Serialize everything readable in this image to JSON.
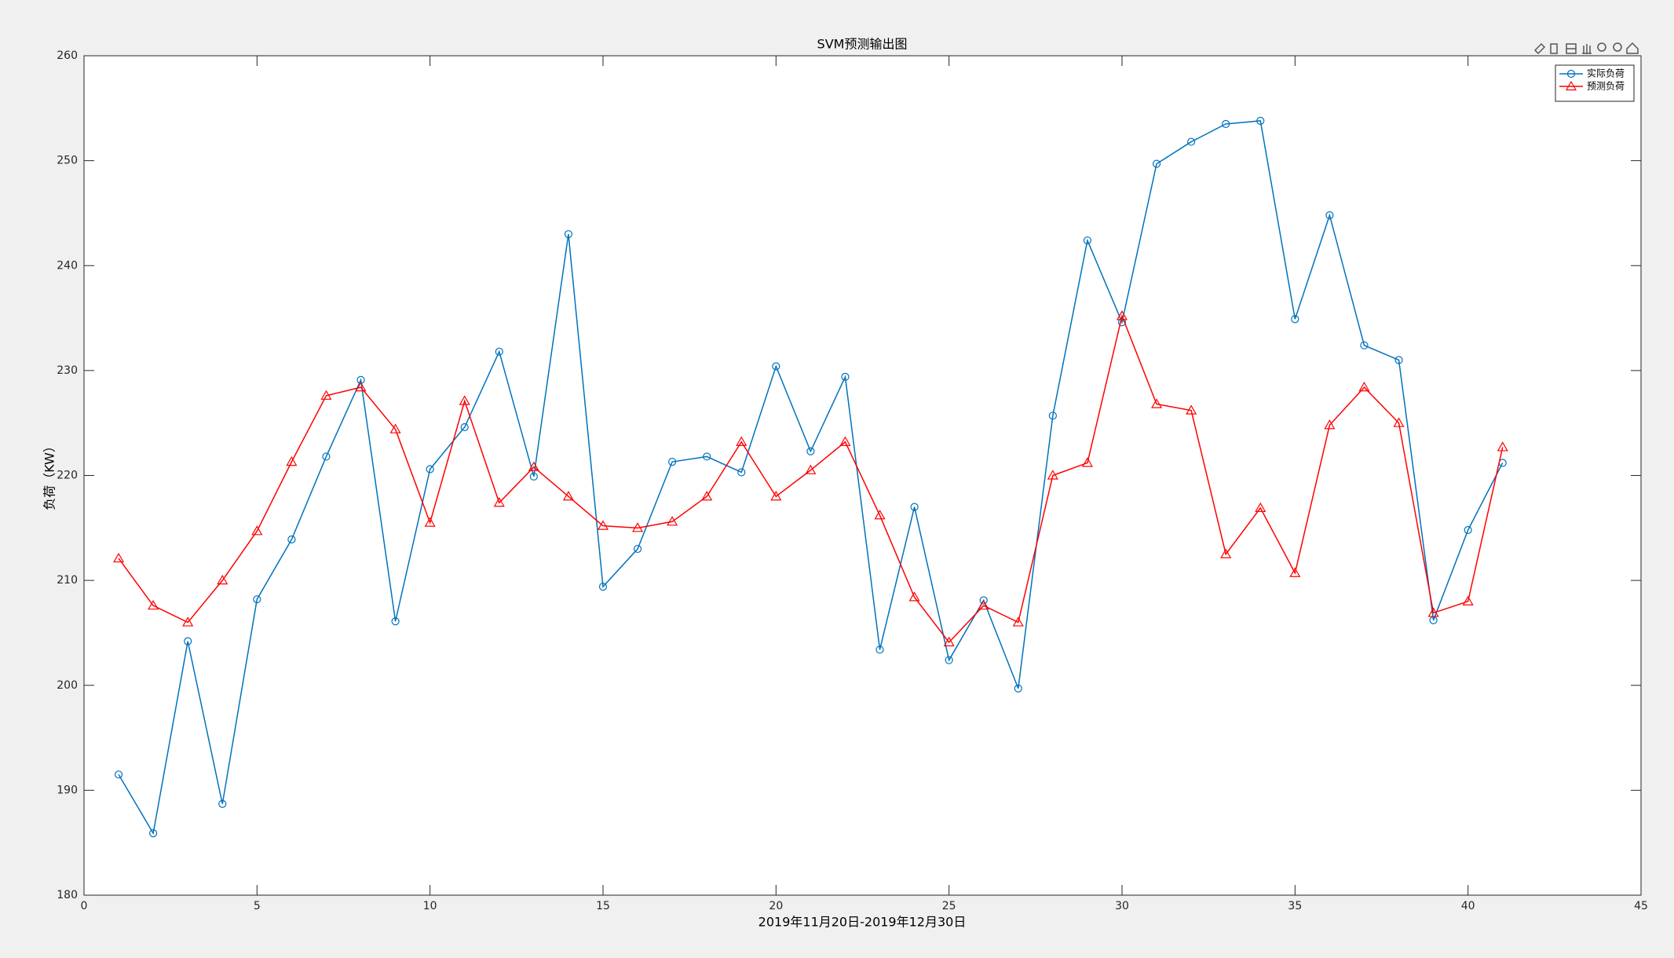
{
  "chart_data": {
    "type": "line",
    "title": "SVM预测输出图",
    "xlabel": "2019年11月20日-2019年12月30日",
    "ylabel": "负荷（KW）",
    "x": [
      1,
      2,
      3,
      4,
      5,
      6,
      7,
      8,
      9,
      10,
      11,
      12,
      13,
      14,
      15,
      16,
      17,
      18,
      19,
      20,
      21,
      22,
      23,
      24,
      25,
      26,
      27,
      28,
      29,
      30,
      31,
      32,
      33,
      34,
      35,
      36,
      37,
      38,
      39,
      40,
      41
    ],
    "series": [
      {
        "name": "实际负荷",
        "color": "#0072bd",
        "marker": "circle",
        "values": [
          191.5,
          185.9,
          204.2,
          188.7,
          208.2,
          213.9,
          221.8,
          229.1,
          206.1,
          220.6,
          224.6,
          231.8,
          219.9,
          243.0,
          209.4,
          213.0,
          221.3,
          221.8,
          220.3,
          230.4,
          222.3,
          229.4,
          203.4,
          217.0,
          202.4,
          208.1,
          199.7,
          225.7,
          242.4,
          234.6,
          249.7,
          251.8,
          253.5,
          253.8,
          234.9,
          244.8,
          232.4,
          231.0,
          206.2,
          214.8,
          221.2
        ]
      },
      {
        "name": "预测负荷",
        "color": "#ff0000",
        "marker": "triangle",
        "values": [
          212.1,
          207.6,
          206.0,
          210.0,
          214.7,
          221.3,
          227.6,
          228.4,
          224.4,
          215.5,
          227.1,
          217.4,
          220.8,
          218.0,
          215.2,
          215.0,
          215.6,
          218.0,
          223.2,
          218.0,
          220.5,
          223.2,
          216.2,
          208.4,
          204.1,
          207.6,
          206.0,
          220.0,
          221.2,
          235.2,
          226.8,
          226.2,
          212.5,
          216.9,
          210.7,
          224.8,
          228.4,
          225.0,
          206.9,
          208.0,
          222.7
        ]
      }
    ],
    "xlim": [
      0,
      45
    ],
    "xticks": [
      0,
      5,
      10,
      15,
      20,
      25,
      30,
      35,
      40,
      45
    ],
    "ylim": [
      180,
      260
    ],
    "yticks": [
      180,
      190,
      200,
      210,
      220,
      230,
      240,
      250,
      260
    ],
    "grid": false,
    "legend": "top-right"
  }
}
